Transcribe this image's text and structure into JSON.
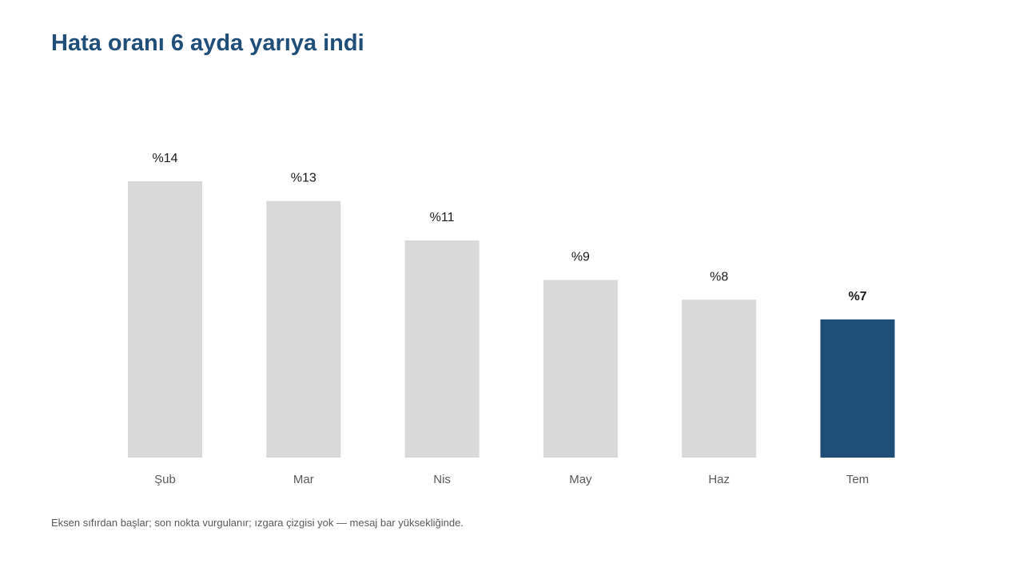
{
  "title": "Hata oranı 6 ayda yarıya indi",
  "footnote": "Eksen sıfırdan başlar; son nokta vurgulanır; ızgara çizgisi yok — mesaj bar yüksekliğinde.",
  "colors": {
    "bar_default": "#d9d9d9",
    "bar_highlight": "#1f4e79",
    "title": "#1f4e79"
  },
  "chart_data": {
    "type": "bar",
    "title": "Hata oranı 6 ayda yarıya indi",
    "categories": [
      "Şub",
      "Mar",
      "Nis",
      "May",
      "Haz",
      "Tem"
    ],
    "values": [
      14,
      13,
      11,
      9,
      8,
      7
    ],
    "value_labels": [
      "%14",
      "%13",
      "%11",
      "%9",
      "%8",
      "%7"
    ],
    "highlight_index": 5,
    "ylim": [
      0,
      14
    ],
    "grid": false,
    "xlabel": "",
    "ylabel": ""
  }
}
